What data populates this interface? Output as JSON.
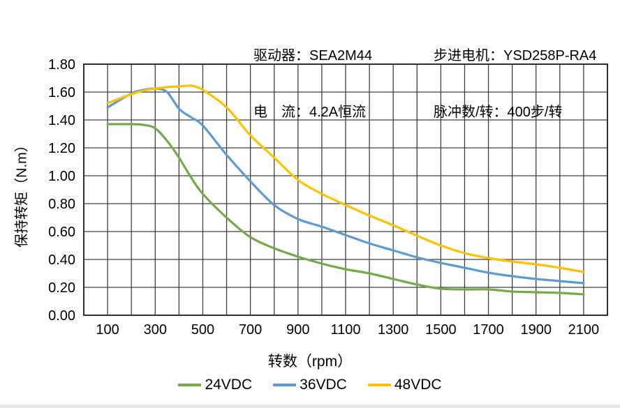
{
  "header": {
    "left": [
      "驱动器：SEA2M44",
      "电　流：4.2A恒流"
    ],
    "right": [
      "步进电机：YSD258P-RA4",
      "脉冲数/转：400步/转"
    ]
  },
  "chart_data": {
    "type": "line",
    "title": "",
    "xlabel": "转数（rpm）",
    "ylabel": "保持转矩（N.m）",
    "xlim": [
      0,
      2200
    ],
    "ylim": [
      0,
      1.8
    ],
    "grid": "on",
    "grid_step_x": 100,
    "grid_step_y": 0.2,
    "x_ticks": [
      100,
      300,
      500,
      700,
      900,
      1100,
      1300,
      1500,
      1700,
      1900,
      2100
    ],
    "y_ticks": [
      "0.00",
      "0.20",
      "0.40",
      "0.60",
      "0.80",
      "1.00",
      "1.20",
      "1.40",
      "1.60",
      "1.80"
    ],
    "legend_position": "bottom",
    "x": [
      100,
      200,
      250,
      300,
      350,
      400,
      450,
      500,
      600,
      700,
      800,
      900,
      1000,
      1100,
      1200,
      1300,
      1400,
      1500,
      1600,
      1700,
      1800,
      1900,
      2000,
      2100
    ],
    "series": [
      {
        "name": "24VDC",
        "color": "#70AD47",
        "values": [
          1.37,
          1.37,
          1.365,
          1.34,
          1.25,
          1.13,
          0.99,
          0.87,
          0.7,
          0.56,
          0.48,
          0.42,
          0.37,
          0.33,
          0.3,
          0.26,
          0.22,
          0.19,
          0.185,
          0.185,
          0.17,
          0.165,
          0.16,
          0.15
        ]
      },
      {
        "name": "36VDC",
        "color": "#5B9BD5",
        "values": [
          1.49,
          1.59,
          1.615,
          1.625,
          1.6,
          1.48,
          1.42,
          1.36,
          1.15,
          0.96,
          0.79,
          0.69,
          0.635,
          0.575,
          0.515,
          0.465,
          0.415,
          0.375,
          0.34,
          0.305,
          0.28,
          0.26,
          0.245,
          0.23
        ]
      },
      {
        "name": "48VDC",
        "color": "#FFC000",
        "values": [
          1.52,
          1.585,
          1.61,
          1.625,
          1.635,
          1.64,
          1.645,
          1.615,
          1.49,
          1.29,
          1.13,
          0.97,
          0.87,
          0.79,
          0.715,
          0.645,
          0.57,
          0.5,
          0.445,
          0.41,
          0.385,
          0.365,
          0.34,
          0.31
        ]
      }
    ],
    "styles": {
      "grid_color": "#404040",
      "frame_color": "#2f2f2f",
      "tick_color": "#000000",
      "curve_width": 3.2
    }
  }
}
